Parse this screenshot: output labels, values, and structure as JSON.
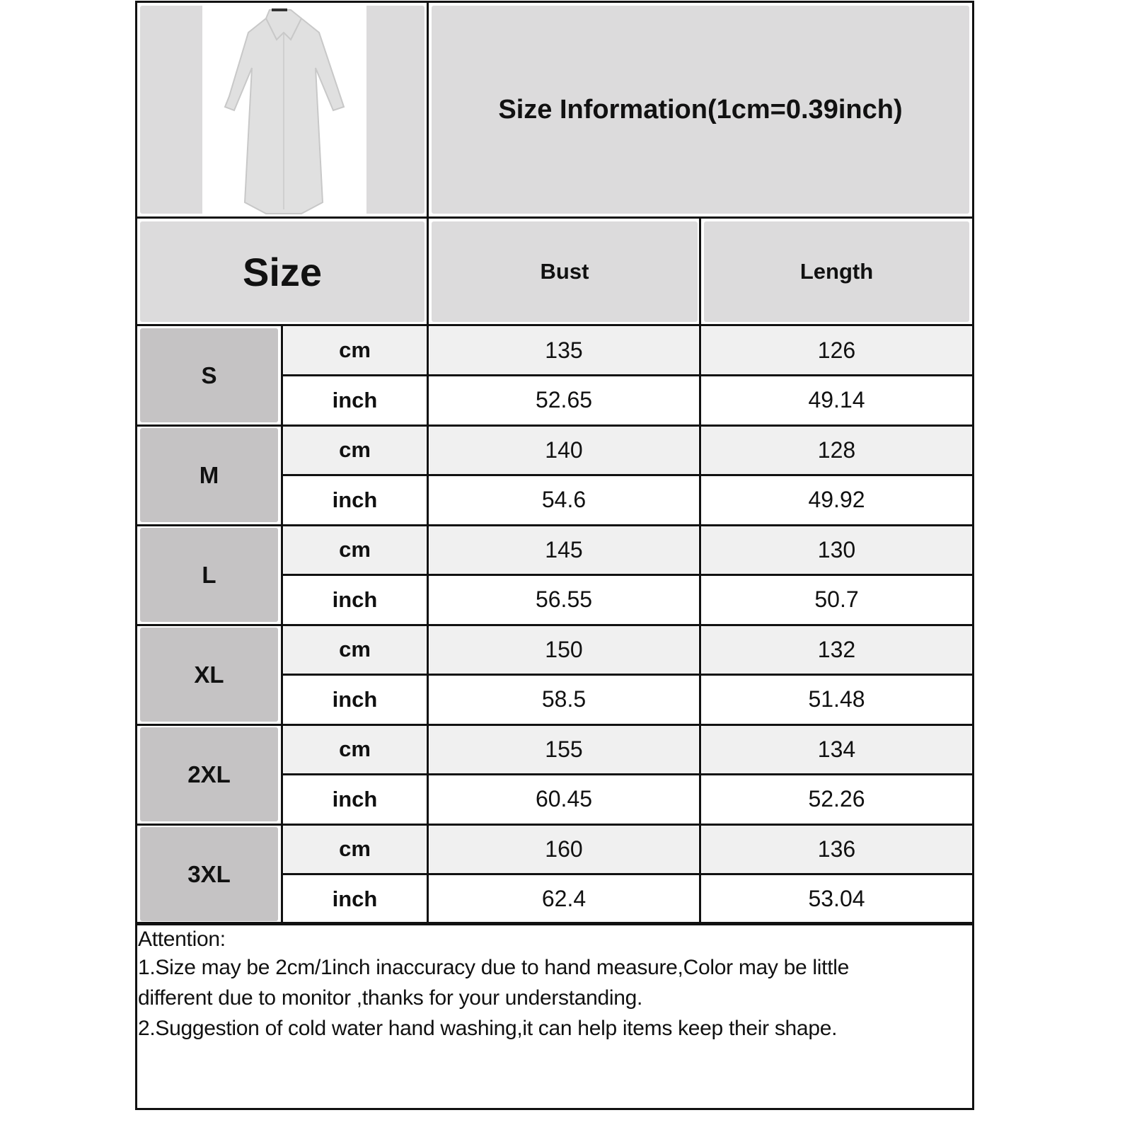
{
  "header": {
    "title": "Size Information(1cm=0.39inch)",
    "product_image": "long-sleeve-shirt-dress-grey"
  },
  "columns": {
    "size": "Size",
    "bust": "Bust",
    "length": "Length"
  },
  "rows": [
    {
      "size": "S",
      "cm": {
        "unit": "cm",
        "bust": "135",
        "length": "126"
      },
      "inch": {
        "unit": "inch",
        "bust": "52.65",
        "length": "49.14"
      }
    },
    {
      "size": "M",
      "cm": {
        "unit": "cm",
        "bust": "140",
        "length": "128"
      },
      "inch": {
        "unit": "inch",
        "bust": "54.6",
        "length": "49.92"
      }
    },
    {
      "size": "L",
      "cm": {
        "unit": "cm",
        "bust": "145",
        "length": "130"
      },
      "inch": {
        "unit": "inch",
        "bust": "56.55",
        "length": "50.7"
      }
    },
    {
      "size": "XL",
      "cm": {
        "unit": "cm",
        "bust": "150",
        "length": "132"
      },
      "inch": {
        "unit": "inch",
        "bust": "58.5",
        "length": "51.48"
      }
    },
    {
      "size": "2XL",
      "cm": {
        "unit": "cm",
        "bust": "155",
        "length": "134"
      },
      "inch": {
        "unit": "inch",
        "bust": "60.45",
        "length": "52.26"
      }
    },
    {
      "size": "3XL",
      "cm": {
        "unit": "cm",
        "bust": "160",
        "length": "136"
      },
      "inch": {
        "unit": "inch",
        "bust": "62.4",
        "length": "53.04"
      }
    }
  ],
  "attention": {
    "heading": "Attention:",
    "line1": "1.Size may be 2cm/1inch inaccuracy due to hand measure,Color may be little",
    "line2": "different due to monitor ,thanks for your understanding.",
    "line3": "2.Suggestion of cold water hand washing,it can help items keep their shape."
  }
}
